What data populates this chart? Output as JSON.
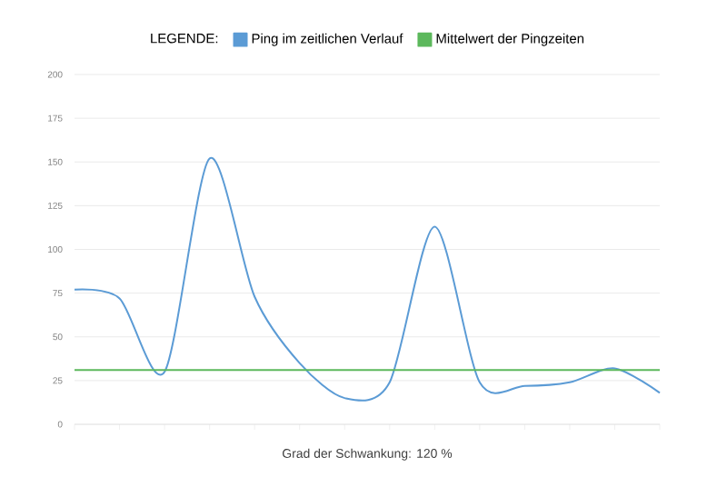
{
  "chart_data": {
    "type": "line",
    "legend_title": "LEGENDE:",
    "xlabel": "Grad der Schwankung: 120 %",
    "categories": [
      null,
      null,
      null,
      null,
      null,
      null,
      null,
      null,
      null,
      null,
      null,
      null,
      null,
      null
    ],
    "series": [
      {
        "name": "Ping im zeitlichen Verlauf",
        "color": "#5b9bd5",
        "values": [
          77,
          72,
          30,
          152,
          73,
          35,
          15,
          24,
          113,
          24,
          22,
          24,
          32,
          18
        ]
      },
      {
        "name": "Mittelwert der Pingzeiten",
        "color": "#5cb85c",
        "values": [
          31,
          31,
          31,
          31,
          31,
          31,
          31,
          31,
          31,
          31,
          31,
          31,
          31,
          31
        ]
      }
    ],
    "ylim": [
      0,
      200
    ],
    "yticks": [
      0,
      25,
      50,
      75,
      100,
      125,
      150,
      175,
      200
    ],
    "grid": "y",
    "legend": "top",
    "marker": "none",
    "line_style": "solid"
  }
}
